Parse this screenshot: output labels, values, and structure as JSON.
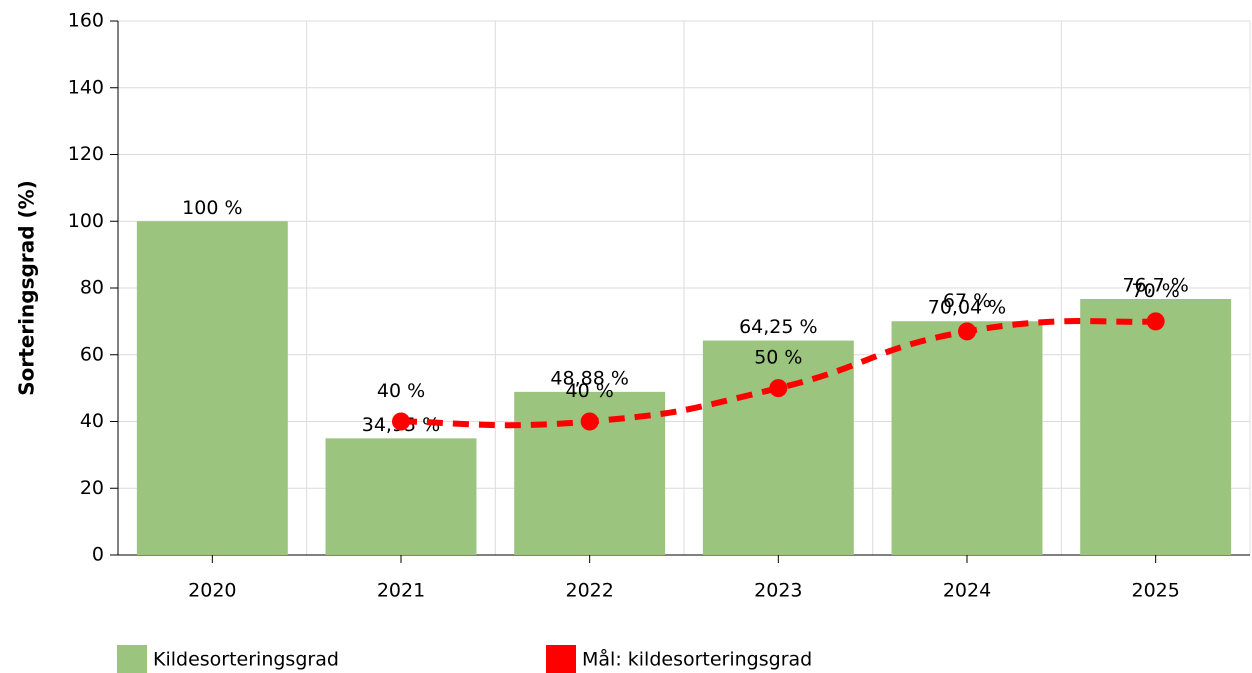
{
  "chart_data": {
    "type": "bar",
    "categories": [
      "2020",
      "2021",
      "2022",
      "2023",
      "2024",
      "2025"
    ],
    "y_axis_label": "Sorteringsgrad (%)",
    "ylim": [
      0,
      160
    ],
    "yticks": [
      0,
      20,
      40,
      60,
      80,
      100,
      120,
      140,
      160
    ],
    "grid": true,
    "legend": "bottom",
    "series": [
      {
        "name": "Kildesorteringsgrad",
        "type": "bar",
        "color": "#9bc47f",
        "values": [
          100,
          34.95,
          48.88,
          64.25,
          70.04,
          76.7
        ],
        "value_labels": [
          "100 %",
          "34,95 %",
          "48,88 %",
          "64,25 %",
          "70,04 %",
          "76,7 %"
        ]
      },
      {
        "name": "Mål: kildesorteringsgrad",
        "type": "line",
        "color": "#ff0000",
        "values": [
          null,
          40,
          40,
          50,
          67,
          70
        ],
        "value_labels": [
          null,
          "40 %",
          "40 %",
          "50 %",
          "67 %",
          "70 %"
        ]
      }
    ]
  }
}
